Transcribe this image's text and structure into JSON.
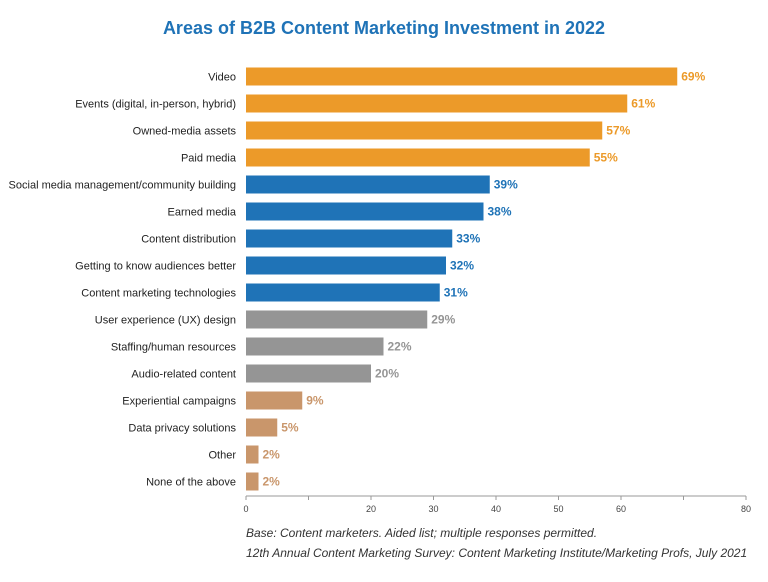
{
  "chart_data": {
    "type": "bar",
    "orientation": "horizontal",
    "title": "Areas of B2B Content Marketing Investment in 2022",
    "categories": [
      "Video",
      "Events (digital, in-person, hybrid)",
      "Owned-media assets",
      "Paid media",
      "Social media management/community building",
      "Earned media",
      "Content distribution",
      "Getting to know audiences better",
      "Content marketing technologies",
      "User experience (UX) design",
      "Staffing/human resources",
      "Audio-related content",
      "Experiential campaigns",
      "Data privacy solutions",
      "Other",
      "None of the above"
    ],
    "values": [
      69,
      61,
      57,
      55,
      39,
      38,
      33,
      32,
      31,
      29,
      22,
      20,
      9,
      5,
      2,
      2
    ],
    "value_labels": [
      "69%",
      "61%",
      "57%",
      "55%",
      "39%",
      "38%",
      "33%",
      "32%",
      "31%",
      "29%",
      "22%",
      "20%",
      "9%",
      "5%",
      "2%",
      "2%"
    ],
    "bar_colors": [
      "#ec9a29",
      "#ec9a29",
      "#ec9a29",
      "#ec9a29",
      "#1f73b7",
      "#1f73b7",
      "#1f73b7",
      "#1f73b7",
      "#1f73b7",
      "#959595",
      "#959595",
      "#959595",
      "#c9966b",
      "#c9966b",
      "#c9966b",
      "#c9966b"
    ],
    "label_colors": [
      "#ec9a29",
      "#ec9a29",
      "#ec9a29",
      "#ec9a29",
      "#1f73b7",
      "#1f73b7",
      "#1f73b7",
      "#1f73b7",
      "#1f73b7",
      "#959595",
      "#959595",
      "#959595",
      "#c9966b",
      "#c9966b",
      "#c9966b",
      "#c9966b"
    ],
    "xlim": [
      0,
      80
    ],
    "xticks": [
      0,
      10,
      20,
      30,
      40,
      50,
      60,
      70,
      80
    ],
    "xtick_labels": [
      "0",
      "",
      "20",
      "30",
      "40",
      "50",
      "60",
      "",
      "80"
    ],
    "xlabel": "",
    "ylabel": "",
    "grid": false
  },
  "footnotes": {
    "base": "Base: Content marketers. Aided list; multiple responses permitted.",
    "source": "12th Annual Content Marketing Survey: Content Marketing Institute/Marketing Profs, July 2021"
  }
}
